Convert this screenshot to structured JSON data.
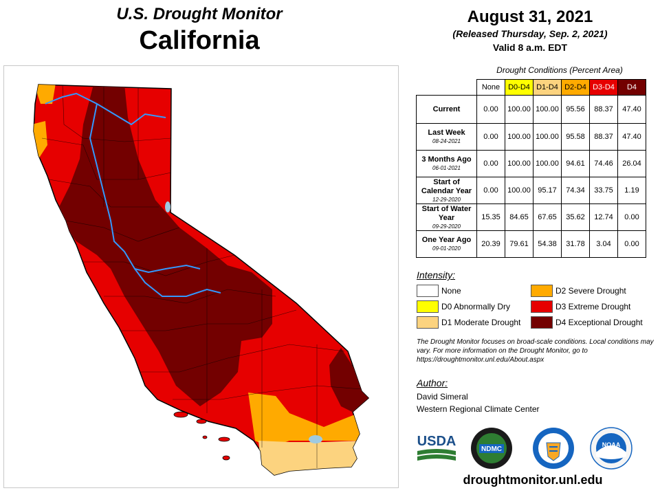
{
  "header": {
    "subtitle": "U.S. Drought Monitor",
    "region": "California",
    "date": "August 31, 2021",
    "released": "(Released Thursday, Sep. 2, 2021)",
    "valid": "Valid 8 a.m. EDT"
  },
  "table": {
    "caption": "Drought Conditions (Percent Area)",
    "columns": [
      {
        "label": "None",
        "color": "#ffffff"
      },
      {
        "label": "D0-D4",
        "color": "#ffff00"
      },
      {
        "label": "D1-D4",
        "color": "#fcd37f"
      },
      {
        "label": "D2-D4",
        "color": "#ffaa00"
      },
      {
        "label": "D3-D4",
        "color": "#e60000"
      },
      {
        "label": "D4",
        "color": "#730000"
      }
    ],
    "rows": [
      {
        "label": "Current",
        "date": "",
        "values": [
          "0.00",
          "100.00",
          "100.00",
          "95.56",
          "88.37",
          "47.40"
        ]
      },
      {
        "label": "Last Week",
        "date": "08-24-2021",
        "values": [
          "0.00",
          "100.00",
          "100.00",
          "95.58",
          "88.37",
          "47.40"
        ]
      },
      {
        "label": "3 Months Ago",
        "date": "06-01-2021",
        "values": [
          "0.00",
          "100.00",
          "100.00",
          "94.61",
          "74.46",
          "26.04"
        ]
      },
      {
        "label": "Start of Calendar Year",
        "date": "12-29-2020",
        "values": [
          "0.00",
          "100.00",
          "95.17",
          "74.34",
          "33.75",
          "1.19"
        ]
      },
      {
        "label": "Start of Water Year",
        "date": "09-29-2020",
        "values": [
          "15.35",
          "84.65",
          "67.65",
          "35.62",
          "12.74",
          "0.00"
        ]
      },
      {
        "label": "One Year Ago",
        "date": "09-01-2020",
        "values": [
          "20.39",
          "79.61",
          "54.38",
          "31.78",
          "3.04",
          "0.00"
        ]
      }
    ]
  },
  "legend": {
    "title": "Intensity:",
    "items": [
      {
        "label": "None",
        "color": "#ffffff"
      },
      {
        "label": "D0 Abnormally Dry",
        "color": "#ffff00"
      },
      {
        "label": "D1 Moderate Drought",
        "color": "#fcd37f"
      },
      {
        "label": "D2 Severe Drought",
        "color": "#ffaa00"
      },
      {
        "label": "D3 Extreme Drought",
        "color": "#e60000"
      },
      {
        "label": "D4 Exceptional Drought",
        "color": "#730000"
      }
    ]
  },
  "note": "The Drought Monitor focuses on broad-scale conditions. Local conditions may vary. For more information on the Drought Monitor, go to https://droughtmonitor.unl.edu/About.aspx",
  "author": {
    "title": "Author:",
    "name": "David Simeral",
    "org": "Western Regional Climate Center"
  },
  "logos": {
    "usda": "USDA",
    "ndmc": "NDMC",
    "noaa": "NOAA"
  },
  "url": "droughtmonitor.unl.edu",
  "icons": [
    "usda-logo",
    "ndmc-logo",
    "commerce-seal",
    "noaa-logo"
  ]
}
